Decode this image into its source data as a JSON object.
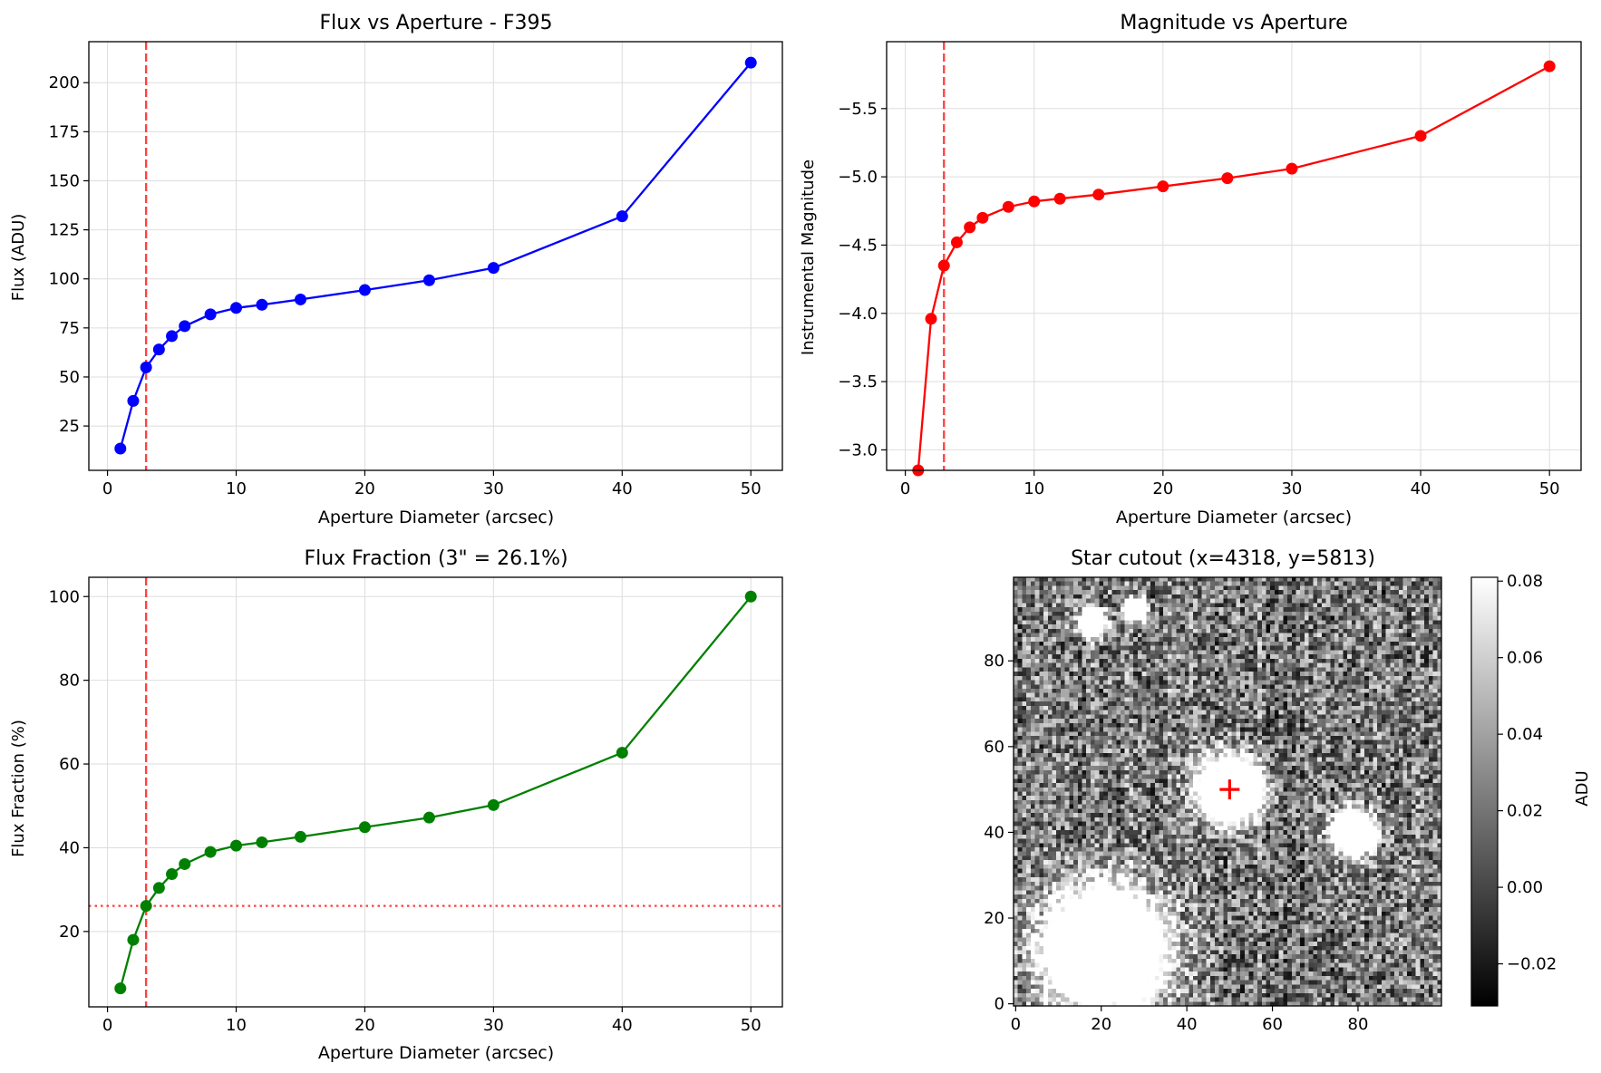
{
  "chart_data": [
    {
      "type": "line",
      "title": "Flux vs Aperture - F395",
      "xlabel": "Aperture Diameter (arcsec)",
      "ylabel": "Flux (ADU)",
      "xlim": [
        -1.45,
        52.45
      ],
      "ylim": [
        2.4,
        220.9
      ],
      "xticks": [
        0,
        10,
        20,
        30,
        40,
        50
      ],
      "yticks": [
        25,
        50,
        75,
        100,
        125,
        150,
        175,
        200
      ],
      "grid": true,
      "color": "#0000ff",
      "x": [
        1,
        2,
        3,
        4,
        5,
        6,
        8,
        10,
        12,
        15,
        20,
        25,
        30,
        40,
        50
      ],
      "values": [
        13.5,
        37.8,
        54.9,
        64.0,
        70.8,
        75.9,
        81.9,
        85.2,
        86.8,
        89.5,
        94.3,
        99.3,
        105.6,
        131.9,
        210.2
      ],
      "vlines": [
        {
          "x": 3,
          "style": "dashed",
          "color": "#ff0000"
        }
      ],
      "hlines": []
    },
    {
      "type": "line",
      "title": "Magnitude vs Aperture",
      "xlabel": "Aperture Diameter (arcsec)",
      "ylabel": "Instrumental Magnitude",
      "inverted_y": true,
      "xlim": [
        -1.45,
        52.45
      ],
      "ylim": [
        -2.85,
        -5.99
      ],
      "xticks": [
        0,
        10,
        20,
        30,
        40,
        50
      ],
      "yticks": [
        -3.0,
        -3.5,
        -4.0,
        -4.5,
        -5.0,
        -5.5
      ],
      "ytick_labels": [
        "−3.0",
        "−3.5",
        "−4.0",
        "−4.5",
        "−5.0",
        "−5.5"
      ],
      "grid": true,
      "color": "#ff0000",
      "x": [
        1,
        2,
        3,
        4,
        5,
        6,
        8,
        10,
        12,
        15,
        20,
        25,
        30,
        40,
        50
      ],
      "values": [
        -2.85,
        -3.96,
        -4.35,
        -4.52,
        -4.63,
        -4.7,
        -4.78,
        -4.82,
        -4.84,
        -4.87,
        -4.93,
        -4.99,
        -5.06,
        -5.3,
        -5.81
      ],
      "vlines": [
        {
          "x": 3,
          "style": "dashed",
          "color": "#ff0000"
        }
      ],
      "hlines": []
    },
    {
      "type": "line",
      "title": "Flux Fraction (3\" = 26.1%)",
      "xlabel": "Aperture Diameter (arcsec)",
      "ylabel": "Flux Fraction (%)",
      "xlim": [
        -1.45,
        52.45
      ],
      "ylim": [
        2.0,
        104.6
      ],
      "xticks": [
        0,
        10,
        20,
        30,
        40,
        50
      ],
      "yticks": [
        20,
        40,
        60,
        80,
        100
      ],
      "grid": true,
      "color": "#008000",
      "x": [
        1,
        2,
        3,
        4,
        5,
        6,
        8,
        10,
        12,
        15,
        20,
        25,
        30,
        40,
        50
      ],
      "values": [
        6.4,
        18.0,
        26.1,
        30.4,
        33.7,
        36.1,
        39.0,
        40.5,
        41.3,
        42.6,
        44.9,
        47.2,
        50.2,
        62.7,
        100.0
      ],
      "vlines": [
        {
          "x": 3,
          "style": "dashed",
          "color": "#ff0000"
        }
      ],
      "hlines": [
        {
          "y": 26.1,
          "style": "dotted",
          "color": "#ff0000"
        }
      ]
    },
    {
      "type": "heatmap",
      "title": "Star cutout (x=4318, y=5813)",
      "colorbar_label": "ADU",
      "colormap": "gray",
      "xlim": [
        -0.5,
        99.5
      ],
      "ylim": [
        -0.5,
        99.5
      ],
      "xticks": [
        0,
        20,
        40,
        60,
        80
      ],
      "yticks": [
        0,
        20,
        40,
        60,
        80
      ],
      "colorbar_range": [
        -0.031,
        0.081
      ],
      "colorbar_ticks": [
        -0.02,
        0.0,
        0.02,
        0.04,
        0.06,
        0.08
      ],
      "colorbar_tick_labels": [
        "−0.02",
        "0.00",
        "0.02",
        "0.04",
        "0.06",
        "0.08"
      ],
      "sources": [
        {
          "x": 50,
          "y": 50,
          "r": 6
        },
        {
          "x": 21,
          "y": 13,
          "r": 11
        },
        {
          "x": 79,
          "y": 40,
          "r": 4
        },
        {
          "x": 18,
          "y": 89,
          "r": 2.5
        },
        {
          "x": 28,
          "y": 92,
          "r": 2
        }
      ],
      "marker": {
        "x": 50,
        "y": 50,
        "symbol": "+",
        "color": "#ff0000"
      }
    }
  ]
}
